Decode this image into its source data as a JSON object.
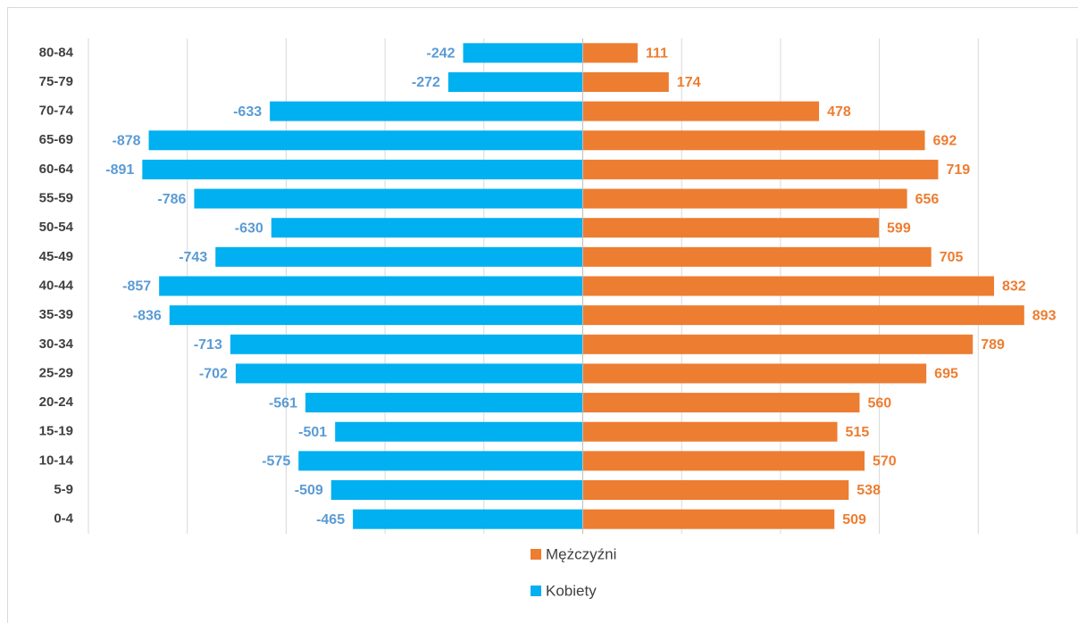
{
  "chart_data": {
    "type": "pyramid",
    "categories": [
      "80-84",
      "75-79",
      "70-74",
      "65-69",
      "60-64",
      "55-59",
      "50-54",
      "45-49",
      "40-44",
      "35-39",
      "30-34",
      "25-29",
      "20-24",
      "15-19",
      "10-14",
      "5-9",
      "0-4"
    ],
    "series": [
      {
        "name": "Mężczyźni",
        "color": "#ed7d31",
        "label_color": "#ed7d31",
        "values": [
          111,
          174,
          478,
          692,
          719,
          656,
          599,
          705,
          832,
          893,
          789,
          695,
          560,
          515,
          570,
          538,
          509
        ]
      },
      {
        "name": "Kobiety",
        "color": "#00b0f0",
        "label_color": "#5b9bd5",
        "values": [
          -242,
          -272,
          -633,
          -878,
          -891,
          -786,
          -630,
          -743,
          -857,
          -836,
          -713,
          -702,
          -561,
          -501,
          -575,
          -509,
          -465
        ]
      }
    ],
    "xlim": [
      -1000,
      1000
    ],
    "xticks": [
      -1000,
      -800,
      -600,
      -400,
      -200,
      0,
      200,
      400,
      600,
      800,
      1000
    ],
    "grid": true,
    "legend": "bottom"
  }
}
